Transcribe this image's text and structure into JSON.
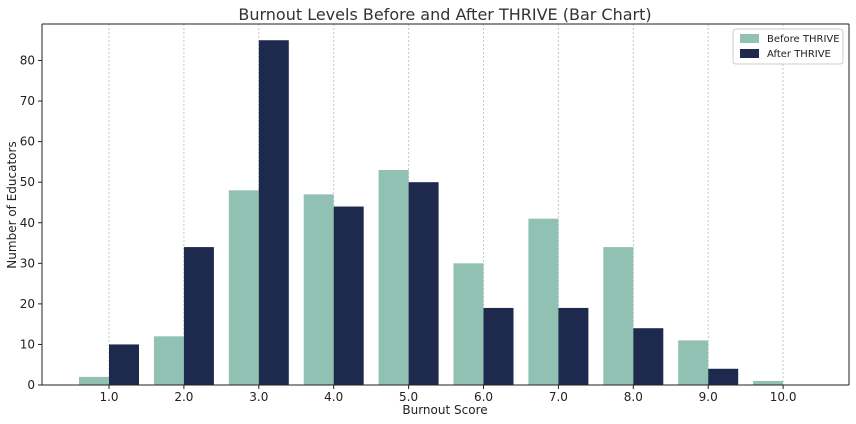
{
  "chart_data": {
    "type": "bar",
    "title": "Burnout Levels Before and After THRIVE (Bar Chart)",
    "xlabel": "Burnout Score",
    "ylabel": "Number of Educators",
    "categories": [
      "1.0",
      "2.0",
      "3.0",
      "4.0",
      "5.0",
      "6.0",
      "7.0",
      "8.0",
      "9.0",
      "10.0"
    ],
    "series": [
      {
        "name": "Before THRIVE",
        "color": "#91c1b2",
        "values": [
          2,
          12,
          48,
          47,
          53,
          30,
          41,
          34,
          11,
          1
        ]
      },
      {
        "name": "After THRIVE",
        "color": "#1d2a4d",
        "values": [
          10,
          34,
          85,
          44,
          50,
          19,
          19,
          14,
          4,
          0
        ]
      }
    ],
    "yticks": [
      0,
      10,
      20,
      30,
      40,
      50,
      60,
      70,
      80
    ],
    "ylim": [
      0,
      89
    ],
    "grid": "vertical dotted",
    "legend": "top-right"
  }
}
